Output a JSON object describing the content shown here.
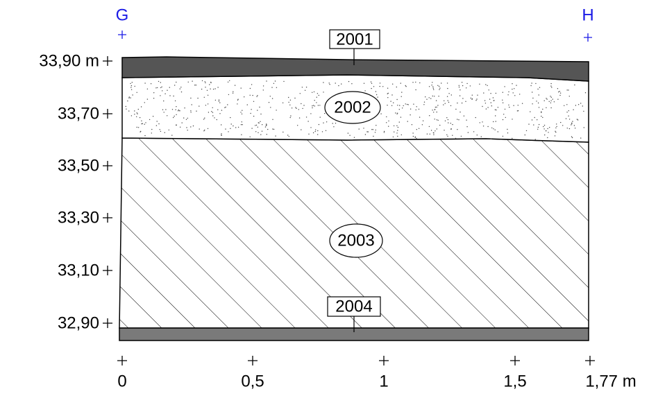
{
  "markers": [
    {
      "label": "G"
    },
    {
      "label": "H"
    }
  ],
  "elevations": [
    "33,90 m",
    "33,70",
    "33,50",
    "33,30",
    "33,10",
    "32,90"
  ],
  "distances": [
    "0",
    "0,5",
    "1",
    "1,5",
    "1,77 m"
  ],
  "layers": [
    {
      "label": "2001"
    },
    {
      "label": "2002"
    },
    {
      "label": "2003"
    },
    {
      "label": "2004"
    }
  ]
}
